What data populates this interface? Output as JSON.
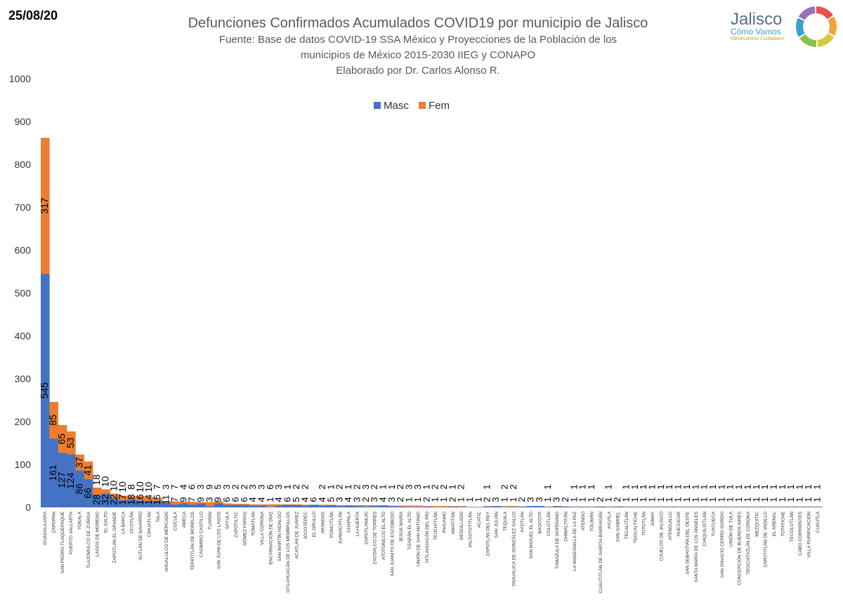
{
  "header": {
    "date": "25/08/20",
    "title": "Defunciones Confirmados Acumulados COVID19 por municipio de Jalisco",
    "subtitle_1": "Fuente: Base de datos COVID-19 SSA México y Proyecciones de la Población de los",
    "subtitle_2": "municipios de México 2015-2030 IIEG y CONAPO",
    "subtitle_3": "Elaborado por Dr. Carlos Alonso R."
  },
  "logo": {
    "name": "Jalisco",
    "tagline": "Cómo Vamos",
    "small": "Observatorio Ciudadano",
    "ring_colors": [
      "#e8524a",
      "#f2a33a",
      "#d9c93a",
      "#8cc152",
      "#3aa1c9",
      "#9b6fb8"
    ]
  },
  "colors": {
    "masc": "#4472c4",
    "fem": "#ed7d31"
  },
  "chart_data": {
    "type": "bar",
    "stacked": true,
    "title": "",
    "ylim": [
      0,
      1000
    ],
    "yticks": [
      0,
      100,
      200,
      300,
      400,
      500,
      600,
      700,
      800,
      900,
      1000
    ],
    "legend": "top-center",
    "grid": false,
    "categories": [
      "GUADALAJARA",
      "ZAPOPAN",
      "SAN PEDRO TLAQUEPAQUE",
      "PUERTO VALLARTA",
      "TONALÁ",
      "TLAJOMULCO DE ZÚÑIGA",
      "LAGOS DE MORENO",
      "EL SALTO",
      "ZAPOTLÁN EL GRANDE",
      "LA BARCA",
      "OCOTLÁN",
      "AUTLÁN DE NAVARRO",
      "CIHUATLÁN",
      "TALA",
      "AHUALULCO DE MERCADO",
      "COCULA",
      "AMECA",
      "TEPATITLÁN DE MORELOS",
      "CASIMIRO CASTILLO",
      "TUXPAN",
      "SAN JUAN DE LOS LAGOS",
      "SAYULA",
      "ZAPOTILTIC",
      "GÓMEZ FARÍAS",
      "TOMATLÁN",
      "VILLA CORONA",
      "ENCARNACIÓN DE DÍAZ",
      "SAN MARTÍN HIDALGO",
      "IXTLAHUACÁN DE LOS MEMBRILLOS",
      "ACATLÁN DE JUÁREZ",
      "JOCOTEPEC",
      "EL GRULLO",
      "ARANDAS",
      "PONCITLÁN",
      "JUANACATLÁN",
      "CHAPALA",
      "LA HUERTA",
      "ZAPOTLANEJO",
      "ZACOALCO DE TORRES",
      "ATOTONILCO EL ALTO",
      "SAN JUANITO DE ESCOBEDO",
      "JESÚS MARÍA",
      "TIZAPÁN EL ALTO",
      "UNIÓN DE SAN ANTONIO",
      "IXTLAHUACÁN DEL RÍO",
      "TEUCHITLÁN",
      "PIHUAMO",
      "AMATITÁN",
      "DEGOLLADO",
      "JALOSTOTITLÁN",
      "ACATIC",
      "ZAPOTLÁN DEL REY",
      "SAN JULIÁN",
      "TEQUILA",
      "YAHUALICA DE GONZÁLEZ GALLO",
      "AYOTLÁN",
      "SAN MIGUEL EL ALTO",
      "MASCOTA",
      "COLOTLÁN",
      "TAMAZULA DE GORDIANO",
      "CHIMALTITÁN",
      "LA MANZANILLA DE LA PAZ",
      "ATENGO",
      "TOLIMÁN",
      "CUAUTITLÁN DE GARCÍA BARRAGÁN",
      "AYUTLA",
      "SAN GABRIEL",
      "TECALITLÁN",
      "TEOCALTICHE",
      "TOTOTLÁN",
      "JAMAY",
      "OJUELOS DE JALISCO",
      "ATENGUILLO",
      "HUEJÚCAR",
      "SAN SEBASTIÁN DEL OESTE",
      "SANTA MARÍA DE LOS ÁNGELES",
      "CHIQUILISTLÁN",
      "TUXCUECA",
      "SAN IGNACIO CERRO GORDO",
      "UNIÓN DE TULA",
      "CONCEPCIÓN DE BUENOS AIRES",
      "TEOCUITATLÁN DE CORONA",
      "MEZQUITIC",
      "ZAPOTITLÁN DE VADILLO",
      "EL ARENAL",
      "TOTATICHE",
      "TECOLOTLÁN",
      "CABO CORRIENTES",
      "VILLA PURIFICACIÓN",
      "CUAUTLA"
    ],
    "series": [
      {
        "name": "Masc",
        "values": [
          545,
          161,
          127,
          124,
          86,
          66,
          28,
          32,
          22,
          17,
          18,
          16,
          14,
          15,
          11,
          7,
          9,
          7,
          9,
          3,
          9,
          6,
          6,
          6,
          4,
          4,
          1,
          4,
          6,
          5,
          4,
          6,
          4,
          5,
          3,
          4,
          3,
          2,
          3,
          4,
          3,
          2,
          1,
          1,
          2,
          1,
          1,
          2,
          1,
          1,
          1,
          2,
          3,
          1,
          1,
          2,
          3,
          3,
          1,
          3,
          2,
          1,
          1,
          1,
          2,
          1,
          2,
          1,
          1,
          1,
          1,
          1,
          1,
          1,
          1,
          1,
          1,
          1,
          1,
          1,
          1,
          1,
          1,
          1,
          1,
          1,
          1,
          1,
          1,
          1
        ]
      },
      {
        "name": "Fem",
        "values": [
          317,
          85,
          65,
          53,
          37,
          41,
          18,
          10,
          10,
          10,
          8,
          10,
          10,
          7,
          3,
          7,
          4,
          6,
          3,
          9,
          5,
          3,
          2,
          2,
          3,
          3,
          6,
          3,
          1,
          2,
          2,
          0,
          2,
          1,
          2,
          1,
          2,
          3,
          2,
          1,
          1,
          2,
          3,
          3,
          1,
          2,
          2,
          1,
          2,
          0,
          0,
          1,
          0,
          2,
          2,
          0,
          0,
          0,
          1,
          0,
          0,
          1,
          1,
          1,
          0,
          1,
          0,
          1,
          1,
          1,
          1,
          1,
          1,
          1,
          1,
          1,
          1,
          1,
          1,
          1,
          1,
          1,
          1,
          1,
          1,
          1,
          1,
          1,
          1,
          1
        ]
      }
    ]
  }
}
